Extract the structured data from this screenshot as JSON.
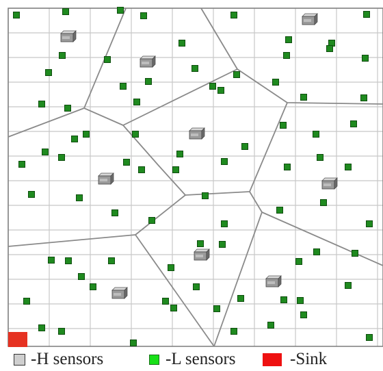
{
  "colors": {
    "grid": "#c8c8c8",
    "border": "#7a7a7a",
    "cell_edge": "#8a8a8a",
    "l_sensor": "#1f8a1f",
    "l_sensor_edge": "#0e4d0e",
    "h_sensor": "#9a9a9a",
    "sink": "#e63222",
    "legend_l": "#18e018",
    "legend_s": "#ee1111",
    "legend_h": "#cfcfcf"
  },
  "icons": {
    "h_sensor": "server-box-icon",
    "l_sensor": "green-square-icon",
    "sink": "red-square-icon"
  },
  "legend": {
    "h_label": "-H  sensors",
    "l_label": "-L sensors",
    "sink_label": "-Sink"
  }
}
